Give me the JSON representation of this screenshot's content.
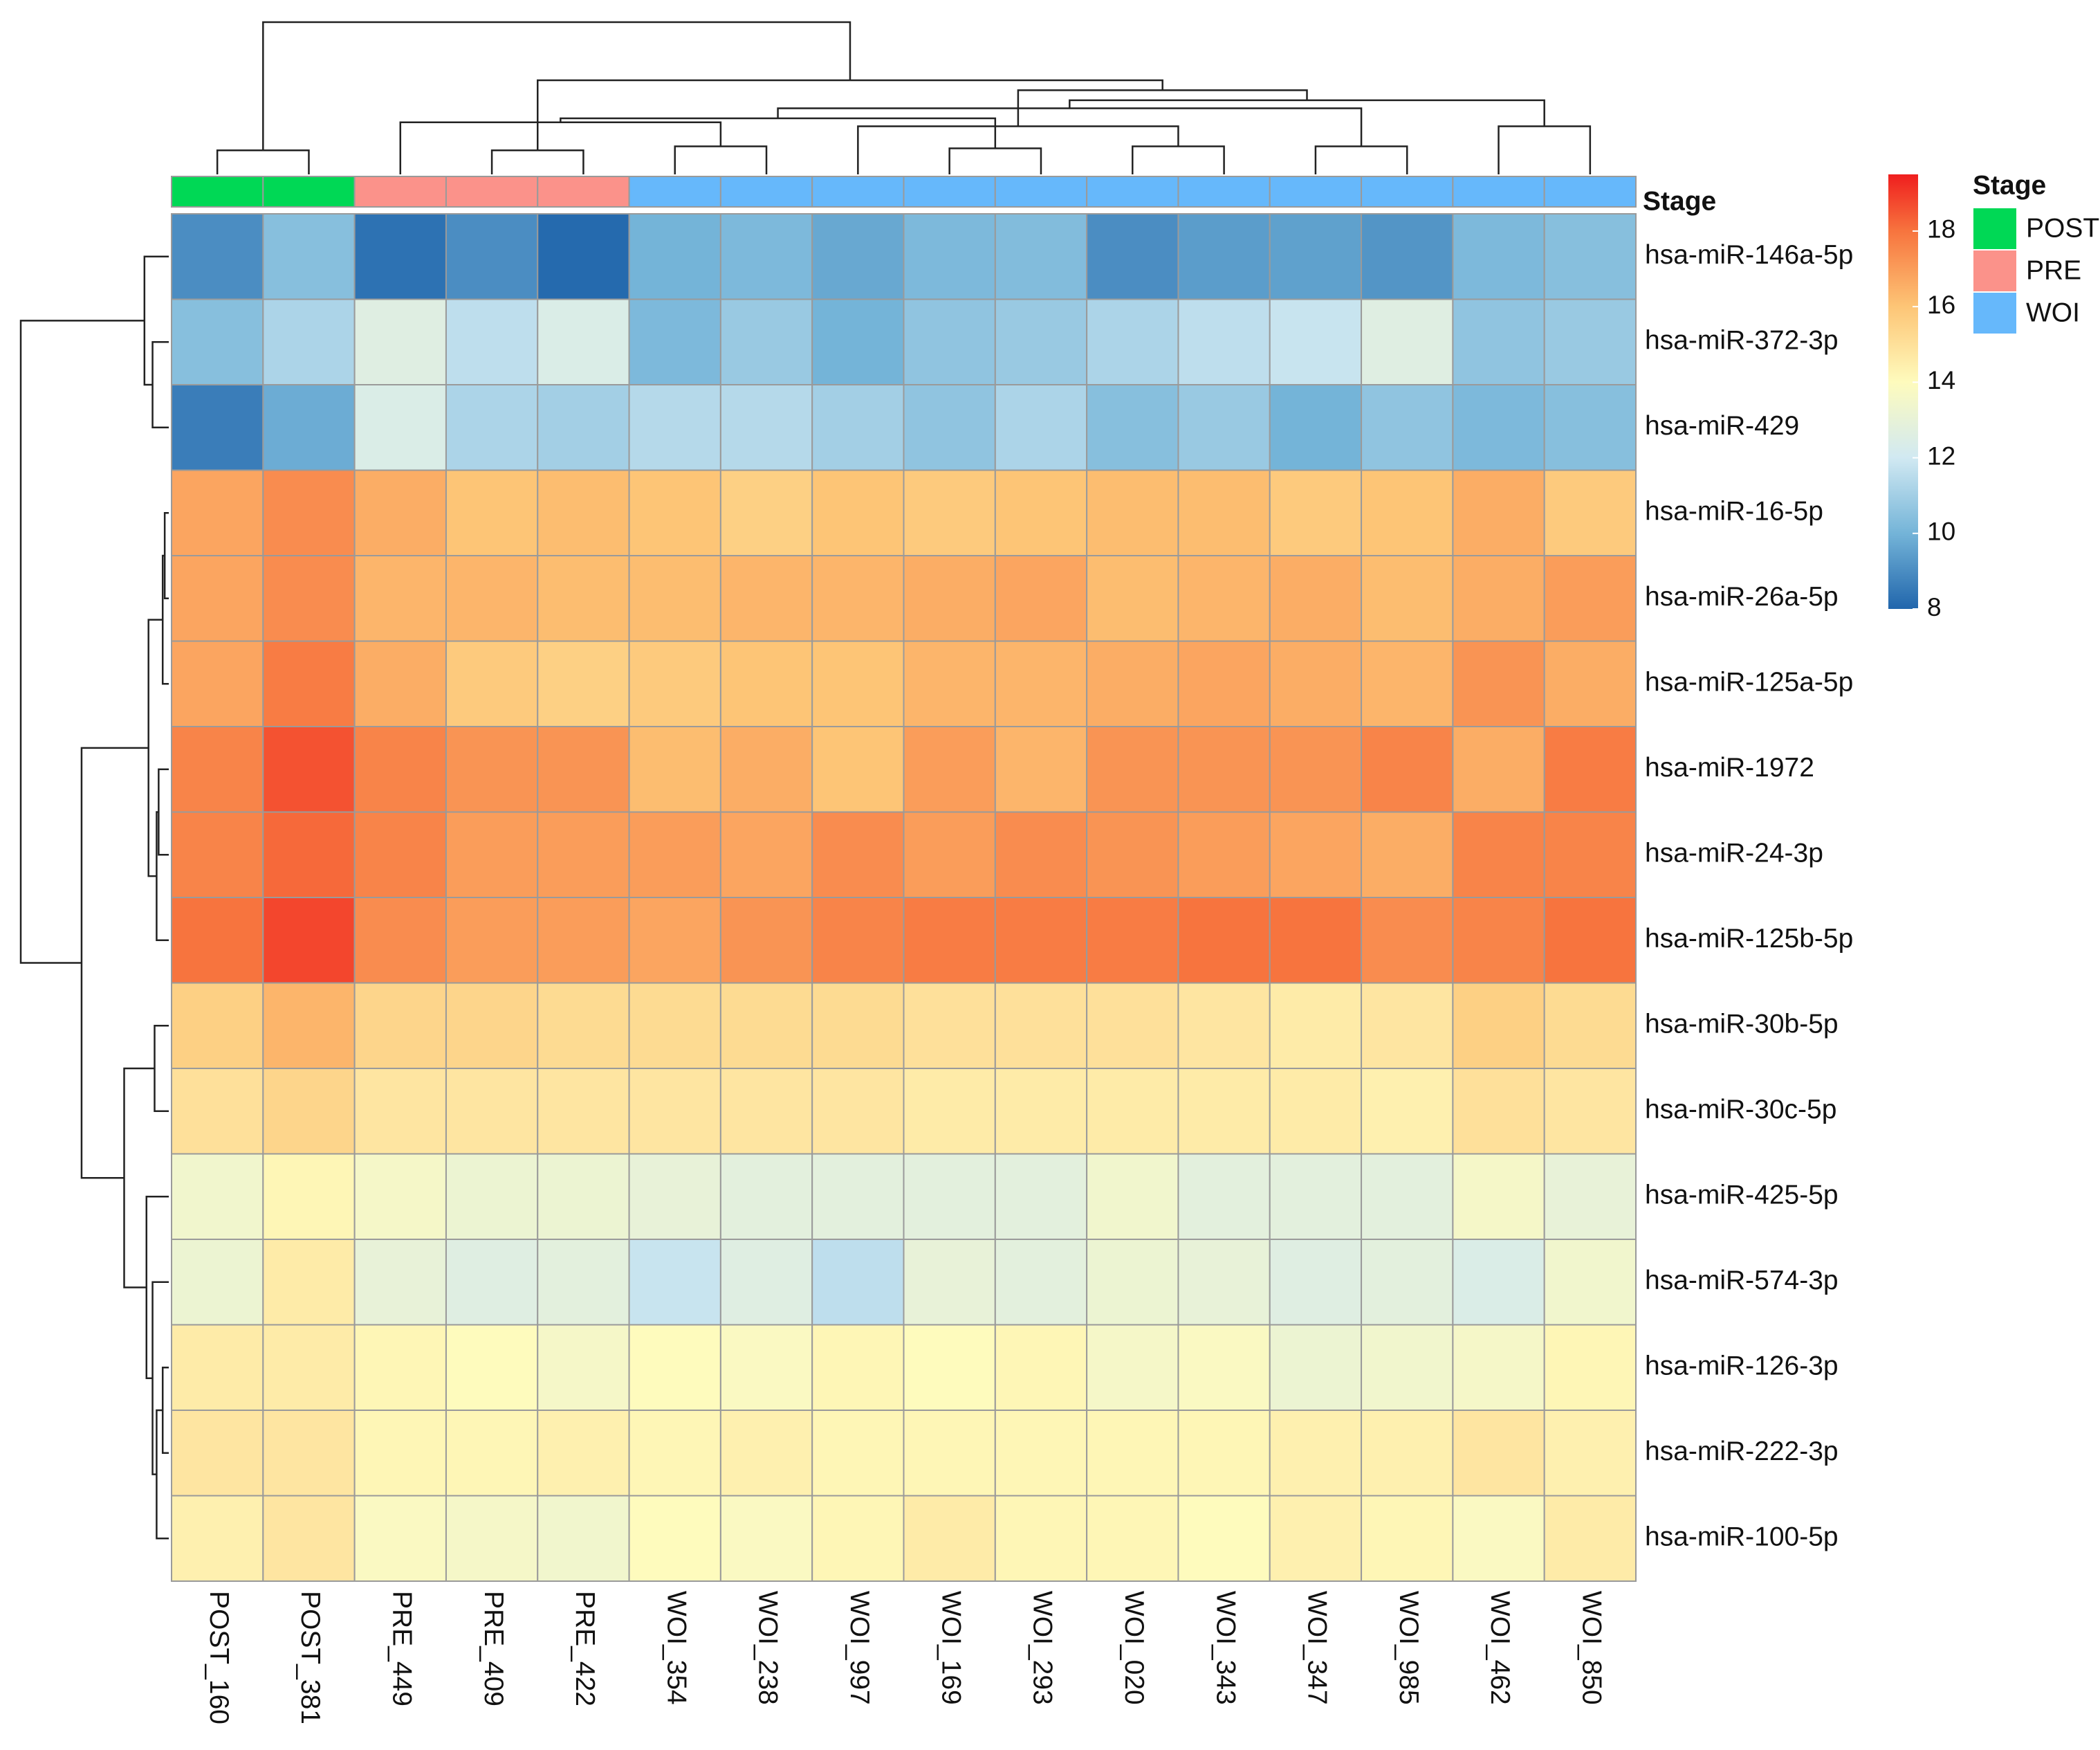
{
  "chart_data": {
    "type": "heatmap",
    "title": "",
    "columns": [
      "POST_160",
      "POST_381",
      "PRE_449",
      "PRE_409",
      "PRE_422",
      "WOI_354",
      "WOI_238",
      "WOI_997",
      "WOI_169",
      "WOI_293",
      "WOI_020",
      "WOI_343",
      "WOI_347",
      "WOI_985",
      "WOI_462",
      "WOI_850"
    ],
    "column_stage": [
      "POST",
      "POST",
      "PRE",
      "PRE",
      "PRE",
      "WOI",
      "WOI",
      "WOI",
      "WOI",
      "WOI",
      "WOI",
      "WOI",
      "WOI",
      "WOI",
      "WOI",
      "WOI"
    ],
    "rows": [
      "hsa-miR-146a-5p",
      "hsa-miR-372-3p",
      "hsa-miR-429",
      "hsa-miR-16-5p",
      "hsa-miR-26a-5p",
      "hsa-miR-125a-5p",
      "hsa-miR-1972",
      "hsa-miR-24-3p",
      "hsa-miR-125b-5p",
      "hsa-miR-30b-5p",
      "hsa-miR-30c-5p",
      "hsa-miR-425-5p",
      "hsa-miR-574-3p",
      "hsa-miR-126-3p",
      "hsa-miR-222-3p",
      "hsa-miR-100-5p"
    ],
    "values": [
      [
        9.0,
        10.4,
        8.3,
        9.0,
        8.1,
        10.0,
        10.2,
        9.7,
        10.2,
        10.3,
        9.0,
        9.4,
        9.5,
        9.2,
        10.2,
        10.4
      ],
      [
        10.4,
        11.2,
        12.6,
        11.6,
        12.4,
        10.2,
        10.8,
        10.0,
        10.6,
        10.8,
        11.2,
        11.6,
        11.8,
        12.6,
        10.6,
        10.8
      ],
      [
        8.6,
        9.8,
        12.4,
        11.2,
        11.0,
        11.4,
        11.4,
        11.0,
        10.6,
        11.2,
        10.4,
        10.8,
        10.0,
        10.6,
        10.2,
        10.4
      ],
      [
        16.8,
        17.4,
        16.6,
        16.0,
        16.2,
        16.0,
        15.6,
        16.0,
        15.8,
        16.0,
        16.2,
        16.2,
        15.8,
        16.0,
        16.6,
        15.8
      ],
      [
        16.8,
        17.4,
        16.4,
        16.4,
        16.2,
        16.2,
        16.4,
        16.4,
        16.6,
        16.8,
        16.2,
        16.4,
        16.6,
        16.2,
        16.6,
        17.0
      ],
      [
        16.8,
        17.8,
        16.6,
        15.8,
        15.6,
        15.8,
        16.0,
        16.0,
        16.4,
        16.4,
        16.6,
        16.8,
        16.6,
        16.4,
        17.2,
        16.6
      ],
      [
        17.6,
        18.6,
        17.6,
        17.2,
        17.2,
        16.2,
        16.6,
        16.0,
        17.0,
        16.4,
        17.2,
        17.2,
        17.2,
        17.6,
        16.6,
        17.8
      ],
      [
        17.6,
        18.2,
        17.6,
        17.0,
        17.0,
        17.0,
        16.8,
        17.4,
        17.0,
        17.4,
        17.2,
        17.0,
        16.8,
        16.6,
        17.6,
        17.6
      ],
      [
        18.0,
        18.8,
        17.4,
        17.0,
        17.0,
        16.8,
        17.2,
        17.6,
        17.8,
        17.8,
        17.8,
        18.0,
        18.0,
        17.4,
        17.6,
        18.0
      ],
      [
        15.6,
        16.4,
        15.4,
        15.4,
        15.2,
        15.2,
        15.2,
        15.2,
        15.0,
        15.0,
        15.0,
        14.8,
        14.6,
        14.8,
        15.6,
        15.2
      ],
      [
        15.0,
        15.4,
        14.8,
        14.8,
        14.8,
        14.8,
        14.8,
        14.8,
        14.6,
        14.6,
        14.6,
        14.6,
        14.6,
        14.4,
        15.0,
        14.8
      ],
      [
        13.4,
        14.2,
        13.6,
        13.2,
        13.2,
        13.0,
        12.8,
        12.8,
        12.8,
        12.8,
        13.4,
        12.8,
        12.8,
        12.8,
        13.6,
        13.0
      ],
      [
        13.2,
        14.6,
        13.0,
        12.6,
        12.8,
        11.8,
        12.6,
        11.6,
        13.0,
        12.8,
        13.2,
        13.0,
        12.6,
        12.8,
        12.4,
        13.4
      ],
      [
        14.6,
        14.6,
        14.2,
        14.0,
        13.6,
        14.0,
        13.8,
        14.2,
        14.0,
        14.2,
        13.6,
        13.8,
        13.2,
        13.4,
        13.6,
        14.2
      ],
      [
        14.8,
        14.8,
        14.2,
        14.2,
        14.4,
        14.2,
        14.4,
        14.2,
        14.2,
        14.2,
        14.2,
        14.2,
        14.4,
        14.4,
        14.8,
        14.4
      ],
      [
        14.4,
        14.8,
        13.8,
        13.6,
        13.4,
        14.0,
        13.8,
        14.2,
        14.6,
        14.2,
        14.2,
        14.0,
        14.4,
        14.2,
        13.8,
        14.6
      ]
    ],
    "color_scale": {
      "min": 8,
      "max": 19.5,
      "ticks": [
        8,
        10,
        12,
        14,
        16,
        18
      ],
      "stops": [
        {
          "v": 8.0,
          "c": "#2166ac"
        },
        {
          "v": 10.0,
          "c": "#74b4d8"
        },
        {
          "v": 12.0,
          "c": "#d1e9f2"
        },
        {
          "v": 14.0,
          "c": "#fefbbd"
        },
        {
          "v": 16.0,
          "c": "#fdc576"
        },
        {
          "v": 18.0,
          "c": "#f7743e"
        },
        {
          "v": 19.5,
          "c": "#ef1e1e"
        }
      ]
    },
    "annotation": {
      "title": "Stage",
      "legend_title": "Stage",
      "levels": [
        {
          "name": "POST",
          "color": "#00d855"
        },
        {
          "name": "PRE",
          "color": "#fb928a"
        },
        {
          "name": "WOI",
          "color": "#66b8fb"
        }
      ]
    },
    "column_tree": [
      [
        0,
        1,
        0.12
      ],
      [
        3,
        4,
        0.12
      ],
      [
        5,
        6,
        0.14
      ],
      [
        8,
        9,
        0.13
      ],
      [
        10,
        11,
        0.14
      ],
      [
        12,
        13,
        0.14
      ],
      [
        2,
        18,
        0.26
      ],
      [
        7,
        20,
        0.24
      ],
      [
        19,
        22,
        0.28
      ],
      [
        14,
        15,
        0.24
      ],
      [
        21,
        24,
        0.33
      ],
      [
        25,
        26,
        0.37
      ],
      [
        23,
        27,
        0.42
      ],
      [
        17,
        28,
        0.47
      ],
      [
        16,
        29,
        0.76
      ]
    ],
    "row_tree": [
      [
        1,
        2,
        0.08
      ],
      [
        0,
        16,
        0.12
      ],
      [
        3,
        4,
        0.02
      ],
      [
        18,
        5,
        0.03
      ],
      [
        6,
        7,
        0.05
      ],
      [
        20,
        8,
        0.06
      ],
      [
        19,
        21,
        0.1
      ],
      [
        9,
        10,
        0.07
      ],
      [
        13,
        14,
        0.03
      ],
      [
        24,
        15,
        0.06
      ],
      [
        12,
        25,
        0.08
      ],
      [
        11,
        26,
        0.11
      ],
      [
        23,
        27,
        0.22
      ],
      [
        22,
        28,
        0.43
      ],
      [
        17,
        29,
        0.73
      ]
    ]
  }
}
